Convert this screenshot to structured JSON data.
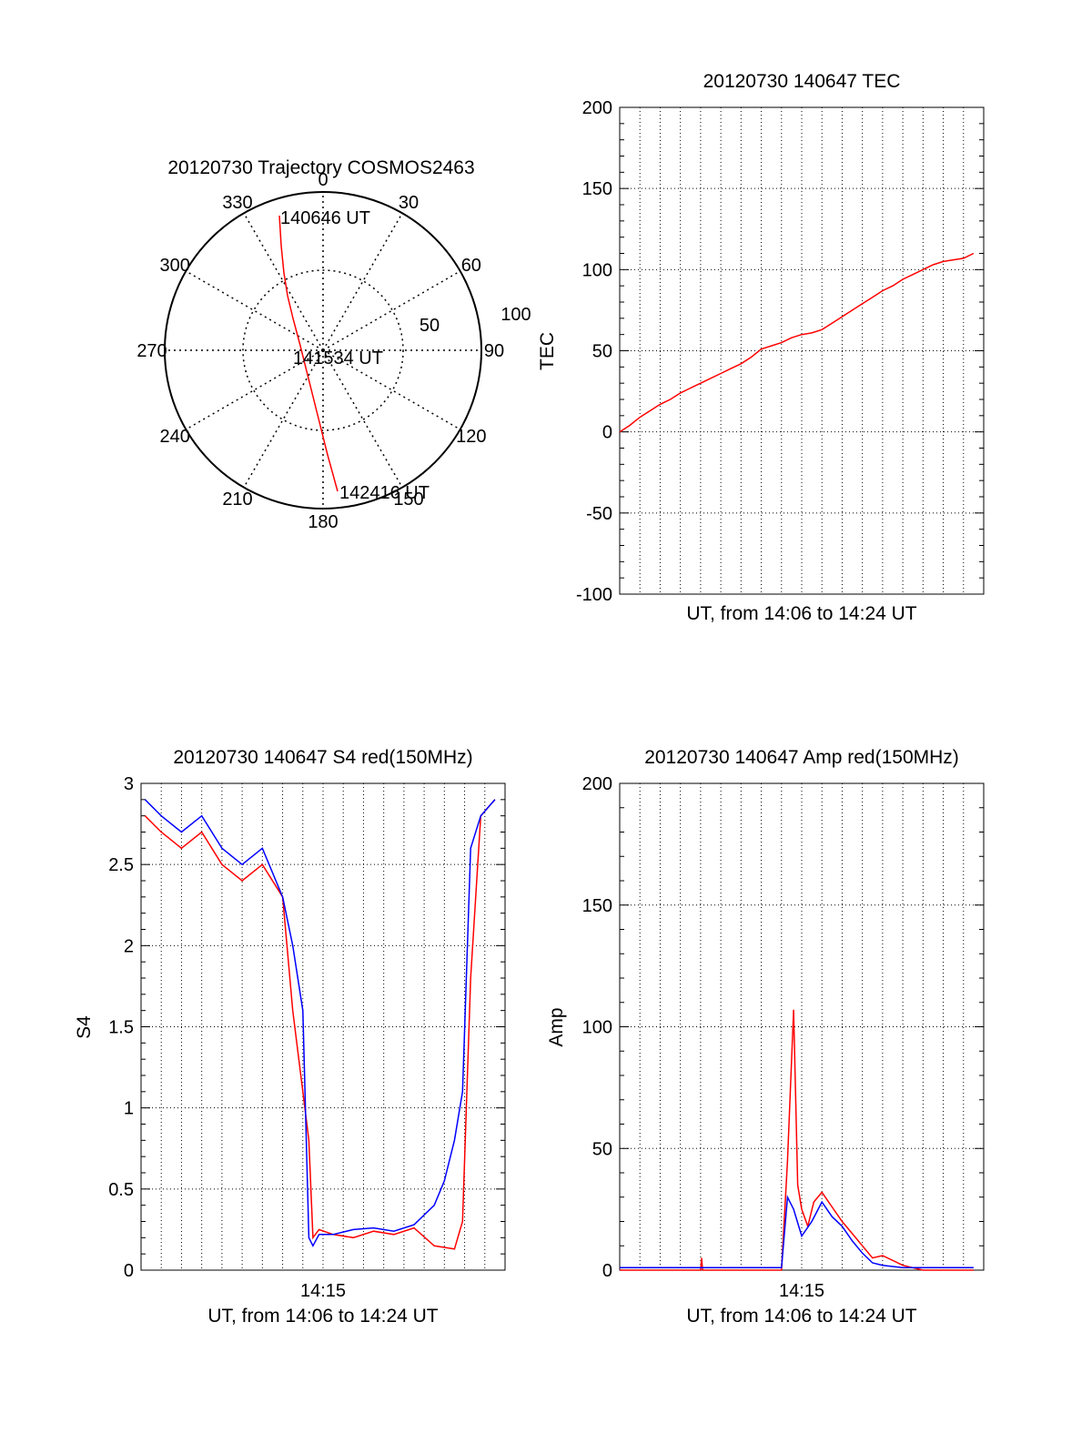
{
  "polar": {
    "title": "20120730 Trajectory COSMOS2463",
    "azimuth_labels": [
      "0",
      "30",
      "60",
      "90",
      "120",
      "150",
      "180",
      "210",
      "240",
      "270",
      "300",
      "330"
    ],
    "radial_labels": [
      "50",
      "100"
    ],
    "start_label": "140646 UT",
    "mid_label": "141534 UT",
    "end_label": "142416 UT",
    "trace_color": "#ff0000"
  },
  "chart_data": [
    {
      "type": "line",
      "title": "20120730 140647 TEC",
      "xlabel": "UT, from 14:06 to 14:24 UT",
      "ylabel": "TEC",
      "ylim": [
        -100,
        200
      ],
      "yticks": [
        "200",
        "150",
        "100",
        "50",
        "0",
        "-50",
        "-100"
      ],
      "grid": true,
      "series": [
        {
          "color": "#ff0000",
          "x": [
            0.0,
            0.5,
            1.0,
            1.5,
            2.0,
            2.5,
            3.0,
            3.5,
            4.0,
            4.5,
            5.0,
            5.5,
            6.0,
            6.5,
            7.0,
            7.5,
            8.0,
            8.5,
            9.0,
            9.5,
            10.0,
            10.5,
            11.0,
            11.5,
            12.0,
            12.5,
            13.0,
            13.5,
            14.0,
            14.5,
            15.0,
            15.5,
            16.0,
            16.5,
            17.0,
            17.5
          ],
          "values": [
            0,
            4,
            9,
            13,
            17,
            20,
            24,
            27,
            30,
            33,
            36,
            39,
            42,
            46,
            51,
            53,
            55,
            58,
            60,
            61,
            63,
            67,
            71,
            75,
            79,
            83,
            87,
            90,
            94,
            97,
            100,
            103,
            105,
            106,
            107,
            110
          ]
        }
      ]
    },
    {
      "type": "line",
      "title": "20120730 140647 S4 red(150MHz)",
      "xlabel": "UT, from 14:06 to 14:24 UT",
      "xtick_label": "14:15",
      "ylabel": "S4",
      "ylim": [
        0,
        3
      ],
      "yticks": [
        "3",
        "2.5",
        "2",
        "1.5",
        "1",
        "0.5",
        "0"
      ],
      "grid": true,
      "series": [
        {
          "color": "#ff0000",
          "x": [
            0.2,
            1.0,
            2.0,
            3.0,
            4.0,
            5.0,
            6.0,
            7.0,
            7.5,
            8.0,
            8.3,
            8.5,
            8.8,
            9.5,
            10.5,
            11.5,
            12.5,
            13.5,
            14.5,
            15.5,
            15.9,
            16.3,
            16.8,
            17.5
          ],
          "values": [
            2.8,
            2.7,
            2.6,
            2.7,
            2.5,
            2.4,
            2.5,
            2.3,
            1.6,
            1.1,
            0.8,
            0.2,
            0.25,
            0.22,
            0.2,
            0.24,
            0.22,
            0.26,
            0.15,
            0.13,
            0.3,
            1.8,
            2.8,
            2.9
          ]
        },
        {
          "color": "#0000ff",
          "x": [
            0.2,
            1.0,
            2.0,
            3.0,
            4.0,
            5.0,
            6.0,
            7.0,
            7.5,
            8.0,
            8.3,
            8.5,
            8.8,
            9.5,
            10.5,
            11.5,
            12.5,
            13.5,
            14.5,
            15.0,
            15.5,
            15.9,
            16.3,
            16.8,
            17.5
          ],
          "values": [
            2.9,
            2.8,
            2.7,
            2.8,
            2.6,
            2.5,
            2.6,
            2.3,
            2.0,
            1.6,
            0.2,
            0.15,
            0.22,
            0.22,
            0.25,
            0.26,
            0.24,
            0.28,
            0.4,
            0.55,
            0.8,
            1.1,
            2.6,
            2.8,
            2.9
          ]
        }
      ]
    },
    {
      "type": "line",
      "title": "20120730 140647 Amp red(150MHz)",
      "xlabel": "UT, from 14:06 to 14:24 UT",
      "xtick_label": "14:15",
      "ylabel": "Amp",
      "ylim": [
        0,
        200
      ],
      "yticks": [
        "200",
        "150",
        "100",
        "50",
        "0"
      ],
      "grid": true,
      "series": [
        {
          "color": "#ff0000",
          "x": [
            0.0,
            4.0,
            4.05,
            4.1,
            8.0,
            8.3,
            8.6,
            8.8,
            9.0,
            9.3,
            9.6,
            10.0,
            10.5,
            11.0,
            11.5,
            12.0,
            12.5,
            13.0,
            14.0,
            15.0,
            16.0,
            17.5
          ],
          "values": [
            0,
            0,
            5,
            0,
            0,
            45,
            107,
            35,
            25,
            18,
            28,
            32,
            26,
            20,
            15,
            10,
            5,
            6,
            2,
            0,
            0,
            0
          ]
        },
        {
          "color": "#0000ff",
          "x": [
            0.0,
            8.0,
            8.3,
            8.6,
            9.0,
            9.5,
            10.0,
            10.5,
            11.0,
            11.5,
            12.0,
            12.5,
            13.0,
            14.0,
            15.0,
            17.5
          ],
          "values": [
            1,
            1,
            30,
            25,
            14,
            20,
            28,
            22,
            18,
            12,
            7,
            3,
            2,
            1,
            1,
            1
          ]
        }
      ]
    }
  ]
}
